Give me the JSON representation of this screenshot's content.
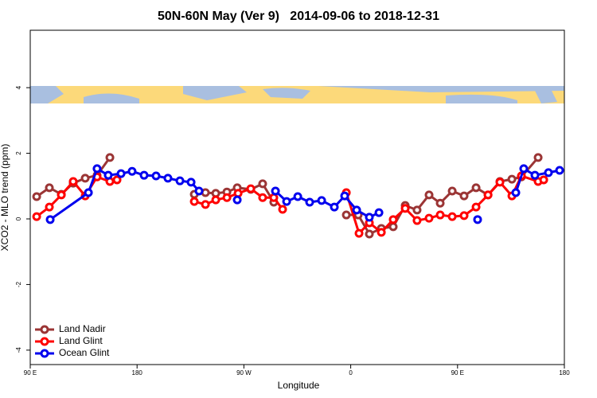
{
  "chart_data": {
    "type": "line",
    "title": "50N-60N May (Ver 9)   2014-09-06 to 2018-12-31",
    "xlabel": "Longitude",
    "ylabel": "XCO2 - MLO trend (ppm)",
    "xlim": [
      90,
      540
    ],
    "ylim": [
      -4.44,
      5.75
    ],
    "xticks": [
      {
        "value": 90,
        "label": "90 E"
      },
      180,
      {
        "value": 270,
        "label": "90 W"
      },
      {
        "value": 360,
        "label": "0"
      },
      {
        "value": 450,
        "label": "90 E"
      },
      {
        "value": 540,
        "label": "180"
      }
    ],
    "yticks": [
      -4,
      -2,
      0,
      2,
      4
    ],
    "legend": "bottom-left",
    "series": [
      {
        "name": "Land Nadir",
        "color": "#9b3535",
        "x": [
          95.4,
          106.1,
          116.2,
          126.2,
          136.3,
          146.3,
          157.1,
          null,
          228.2,
          237.6,
          246.3,
          255.7,
          264.4,
          275.8,
          285.8,
          295.2,
          null,
          356.3,
          366.3,
          375.7,
          385.8,
          395.8,
          405.9,
          415.9,
          426.0,
          435.4,
          445.5,
          455.5,
          465.6,
          475.7,
          485.7,
          495.8,
          503.8,
          517.9
        ],
        "values": [
          0.68,
          0.95,
          0.75,
          1.09,
          1.24,
          1.33,
          1.87,
          null,
          0.75,
          0.8,
          0.78,
          0.82,
          0.95,
          0.9,
          1.07,
          0.51,
          null,
          0.12,
          0.12,
          -0.46,
          -0.29,
          -0.24,
          0.41,
          0.27,
          0.73,
          0.48,
          0.85,
          0.7,
          0.95,
          0.73,
          1.14,
          1.21,
          1.28,
          1.87
        ]
      },
      {
        "name": "Land Glint",
        "color": "#ff0000",
        "x": [
          95.4,
          106.1,
          116.2,
          126.2,
          136.3,
          146.3,
          157.1,
          163.1,
          null,
          228.2,
          237.6,
          246.3,
          255.7,
          265.1,
          275.8,
          285.8,
          295.2,
          302.6,
          null,
          356.3,
          367.0,
          375.7,
          385.8,
          395.8,
          405.9,
          415.9,
          426.0,
          435.4,
          445.5,
          455.5,
          465.6,
          475.7,
          485.7,
          495.8,
          503.8,
          517.9,
          522.6
        ],
        "values": [
          0.07,
          0.36,
          0.73,
          1.14,
          0.7,
          1.28,
          1.14,
          1.19,
          null,
          0.53,
          0.44,
          0.58,
          0.65,
          0.78,
          0.92,
          0.65,
          0.65,
          0.29,
          null,
          0.8,
          -0.44,
          -0.12,
          -0.41,
          -0.02,
          0.32,
          -0.05,
          0.02,
          0.12,
          0.07,
          0.1,
          0.36,
          0.73,
          1.12,
          0.7,
          1.31,
          1.14,
          1.19
        ]
      },
      {
        "name": "Ocean Glint",
        "color": "#0000ee",
        "x": [
          106.8,
          139.0,
          146.3,
          155.7,
          166.5,
          175.8,
          185.9,
          196.0,
          206.0,
          216.1,
          225.5,
          232.2,
          null,
          264.4,
          null,
          296.6,
          306.0,
          315.4,
          325.4,
          335.5,
          346.2,
          354.9,
          365.0,
          375.7,
          383.8,
          null,
          466.9,
          null,
          499.1,
          505.8,
          515.2,
          526.6,
          536.0
        ],
        "values": [
          -0.02,
          0.8,
          1.53,
          1.33,
          1.38,
          1.45,
          1.33,
          1.31,
          1.24,
          1.16,
          1.12,
          0.85,
          null,
          0.58,
          null,
          0.85,
          0.53,
          0.68,
          0.51,
          0.56,
          0.36,
          0.7,
          0.27,
          0.05,
          0.19,
          null,
          -0.02,
          null,
          0.8,
          1.53,
          1.33,
          1.41,
          1.48
        ]
      }
    ]
  }
}
